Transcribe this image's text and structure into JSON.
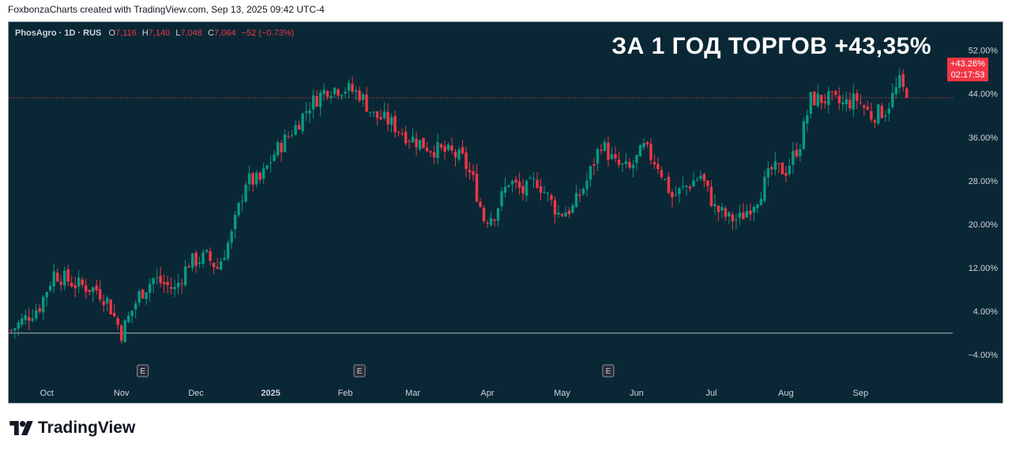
{
  "header": {
    "text": "FoxbonzaCharts created with TradingView.com, Sep 13, 2025 09:42 UTC-4"
  },
  "legend": {
    "symbol": "PhosAgro · 1D · RUS",
    "open_label": "O",
    "open_value": "7,116",
    "high_label": "H",
    "high_value": "7,140",
    "low_label": "L",
    "low_value": "7,048",
    "close_label": "C",
    "close_value": "7,064",
    "change": "−52 (−0.73%)"
  },
  "overlay_title": "ЗА 1 ГОД ТОРГОВ +43,35%",
  "price_tag": {
    "value": "+43.26%",
    "countdown": "02:17:53"
  },
  "earnings_marker": "E",
  "brand": {
    "name": "TradingView"
  },
  "colors": {
    "background": "#0a2735",
    "up": "#089981",
    "down": "#f23645",
    "axis_text": "#d1d4dc",
    "tag": "#f23645"
  },
  "chart_data": {
    "type": "candlestick",
    "title": "ЗА 1 ГОД ТОРГОВ +43,35%",
    "y_unit": "% change",
    "ylim": [
      -6,
      55
    ],
    "yticks": [
      "52.00%",
      "44.00%",
      "36.00%",
      "28.00%",
      "20.00%",
      "12.00%",
      "4.00%",
      "−4.00%"
    ],
    "ytick_values": [
      52,
      44,
      36,
      28,
      20,
      12,
      4,
      -4
    ],
    "baseline": 0,
    "xticks": [
      "Oct",
      "Nov",
      "Dec",
      "2025",
      "Feb",
      "Mar",
      "Apr",
      "May",
      "Jun",
      "Jul",
      "Aug",
      "Sep"
    ],
    "xtick_index": [
      10,
      31,
      52,
      73,
      94,
      113,
      134,
      155,
      176,
      197,
      218,
      239
    ],
    "earnings_at_index": [
      37,
      98,
      168
    ],
    "n_bars": 265,
    "close_path_keyframes": [
      [
        0,
        0.5
      ],
      [
        8,
        5
      ],
      [
        12,
        11
      ],
      [
        18,
        9
      ],
      [
        24,
        8
      ],
      [
        27,
        6
      ],
      [
        31,
        0
      ],
      [
        36,
        7
      ],
      [
        40,
        10
      ],
      [
        46,
        8
      ],
      [
        50,
        13
      ],
      [
        55,
        14
      ],
      [
        58,
        12
      ],
      [
        62,
        18
      ],
      [
        66,
        28
      ],
      [
        70,
        28
      ],
      [
        74,
        33
      ],
      [
        80,
        38
      ],
      [
        84,
        42
      ],
      [
        89,
        45
      ],
      [
        94,
        45
      ],
      [
        98,
        44
      ],
      [
        102,
        40
      ],
      [
        106,
        39
      ],
      [
        112,
        36
      ],
      [
        118,
        34
      ],
      [
        124,
        33
      ],
      [
        127,
        32
      ],
      [
        130,
        28
      ],
      [
        133,
        21
      ],
      [
        136,
        22
      ],
      [
        140,
        28
      ],
      [
        144,
        26
      ],
      [
        148,
        28
      ],
      [
        154,
        22
      ],
      [
        158,
        23
      ],
      [
        162,
        28
      ],
      [
        166,
        35
      ],
      [
        170,
        31
      ],
      [
        174,
        30
      ],
      [
        178,
        34
      ],
      [
        182,
        31
      ],
      [
        186,
        25
      ],
      [
        190,
        27
      ],
      [
        194,
        29
      ],
      [
        198,
        23
      ],
      [
        202,
        21
      ],
      [
        205,
        21
      ],
      [
        210,
        25
      ],
      [
        214,
        30
      ],
      [
        218,
        30
      ],
      [
        222,
        35
      ],
      [
        225,
        43
      ],
      [
        230,
        43
      ],
      [
        234,
        42
      ],
      [
        238,
        43
      ],
      [
        242,
        40
      ],
      [
        246,
        41
      ],
      [
        250,
        46
      ],
      [
        252,
        43.3
      ]
    ],
    "last_value": 43.26,
    "total_return_pct": 43.35
  }
}
